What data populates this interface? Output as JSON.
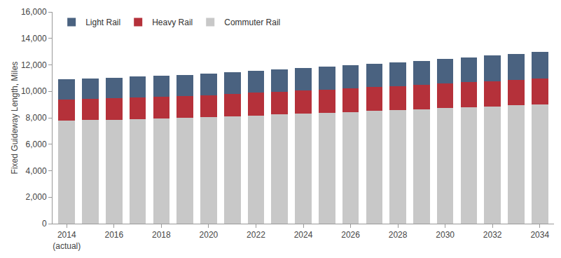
{
  "chart_data": {
    "type": "bar",
    "stacked": true,
    "y_label": "Fixed Guideway Length, Miles",
    "categories": [
      "2014\n(actual)",
      null,
      "2016",
      null,
      "2018",
      null,
      "2020",
      null,
      "2022",
      null,
      "2024",
      null,
      "2026",
      null,
      "2028",
      null,
      "2030",
      null,
      "2032",
      null,
      "2034"
    ],
    "series": [
      {
        "name": "Commuter Rail",
        "color": "#c8c8c8",
        "values": [
          7800,
          7820,
          7860,
          7900,
          7950,
          8000,
          8050,
          8100,
          8180,
          8250,
          8300,
          8370,
          8450,
          8520,
          8580,
          8650,
          8720,
          8790,
          8860,
          8930,
          9030
        ]
      },
      {
        "name": "Heavy Rail",
        "color": "#b5313a",
        "values": [
          1600,
          1610,
          1620,
          1630,
          1640,
          1650,
          1670,
          1690,
          1710,
          1720,
          1750,
          1770,
          1790,
          1810,
          1830,
          1850,
          1870,
          1890,
          1910,
          1930,
          1950
        ]
      },
      {
        "name": "Light Rail",
        "color": "#4a6280",
        "values": [
          1500,
          1520,
          1520,
          1570,
          1610,
          1600,
          1630,
          1660,
          1660,
          1680,
          1700,
          1710,
          1760,
          1770,
          1790,
          1800,
          1860,
          1870,
          1930,
          1940,
          2020
        ]
      }
    ],
    "ylim": [
      0,
      16000
    ],
    "yticks": [
      0,
      {
        "value": 2000,
        "label": "2,000"
      },
      {
        "value": 4000,
        "label": "4,000"
      },
      {
        "value": 6000,
        "label": "6,000"
      },
      {
        "value": 8000,
        "label": "8,000"
      },
      {
        "value": 10000,
        "label": "10,000"
      },
      {
        "value": 12000,
        "label": "12,000"
      },
      {
        "value": 14000,
        "label": "14,000"
      },
      {
        "value": 16000,
        "label": "16,000"
      }
    ],
    "grid": false,
    "legend": "top-left"
  }
}
